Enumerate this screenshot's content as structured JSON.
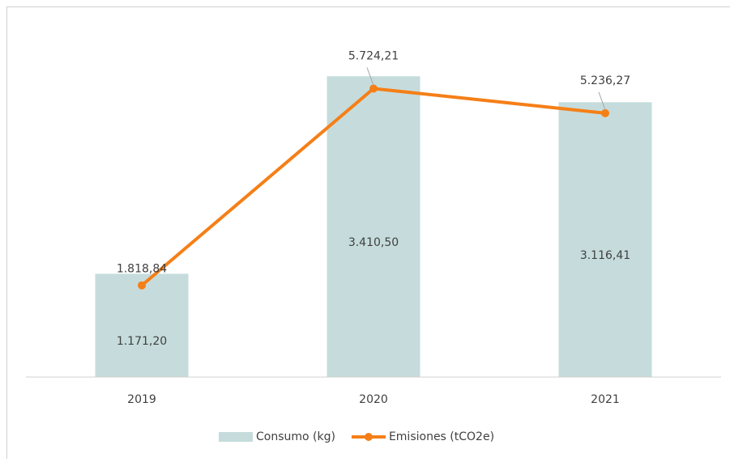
{
  "chart_data": {
    "type": "bar-line",
    "categories": [
      "2019",
      "2020",
      "2021"
    ],
    "series": [
      {
        "name": "Consumo (kg)",
        "type": "bar",
        "color": "#c6dcdc",
        "values": [
          1171.2,
          3410.5,
          3116.41
        ],
        "value_labels": [
          "1.171,20",
          "3.410,50",
          "3.116,41"
        ]
      },
      {
        "name": "Emisiones (tCO2e)",
        "type": "line",
        "axis": "y2",
        "color": "#f57f17",
        "values": [
          1818.84,
          5724.21,
          5236.27
        ],
        "value_labels": [
          "1.818,84",
          "5.724,21",
          "5.236,27"
        ]
      }
    ],
    "ylim": [
      0,
      4000
    ],
    "y2lim": [
      0,
      7000
    ],
    "legend": "bottom"
  }
}
